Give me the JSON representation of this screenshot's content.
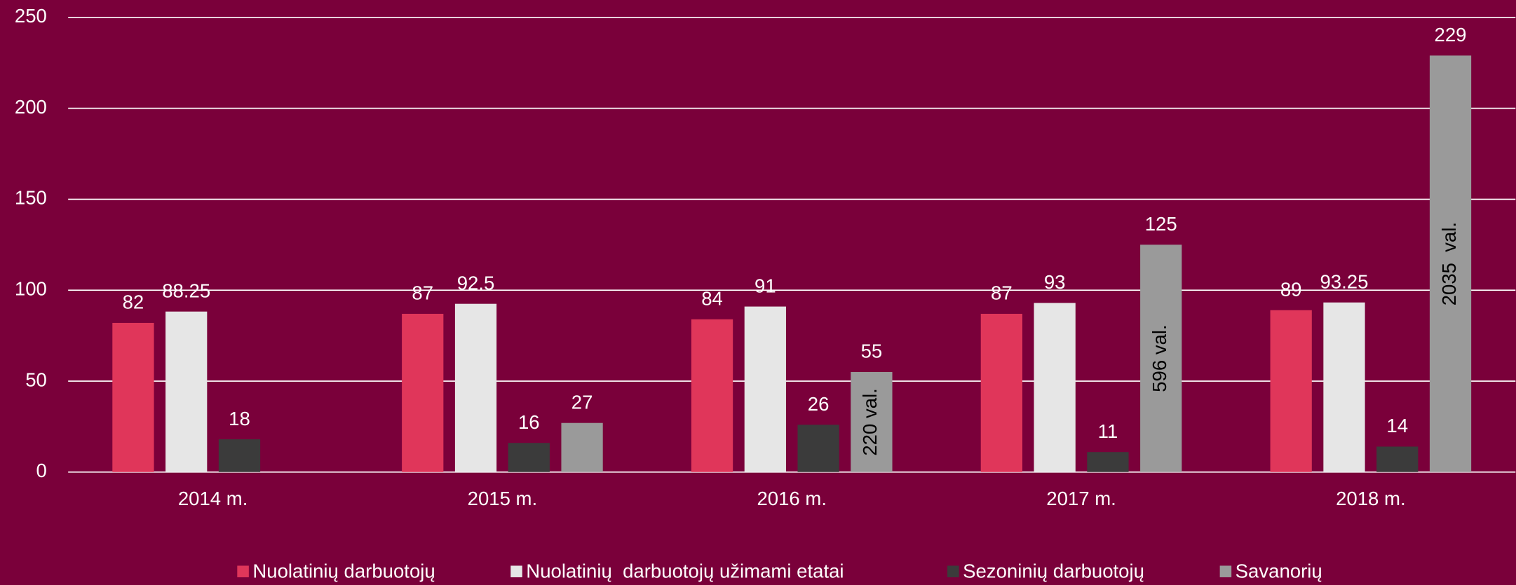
{
  "chart_data": {
    "type": "bar",
    "categories": [
      "2014 m.",
      "2015 m.",
      "2016 m.",
      "2017 m.",
      "2018 m."
    ],
    "series": [
      {
        "name": "Nuolatinių darbuotojų",
        "color": "#e0365a",
        "values": [
          82,
          87,
          84,
          87,
          89
        ]
      },
      {
        "name": "Nuolatinių  darbuotojų užimami etatai",
        "color": "#e6e6e6",
        "values": [
          88.25,
          92.5,
          91,
          93,
          93.25
        ]
      },
      {
        "name": "Sezoninių darbuotojų",
        "color": "#3b3b3b",
        "values": [
          18,
          16,
          26,
          11,
          14
        ]
      },
      {
        "name": "Savanorių",
        "color": "#9a9a9a",
        "values": [
          null,
          27,
          55,
          125,
          229
        ],
        "annotations": [
          null,
          null,
          "220 val.",
          "596 val.",
          "2035  val."
        ]
      }
    ],
    "ylim": [
      0,
      250
    ],
    "yticks": [
      0,
      50,
      100,
      150,
      200,
      250
    ],
    "grid": true,
    "legend": "bottom"
  }
}
